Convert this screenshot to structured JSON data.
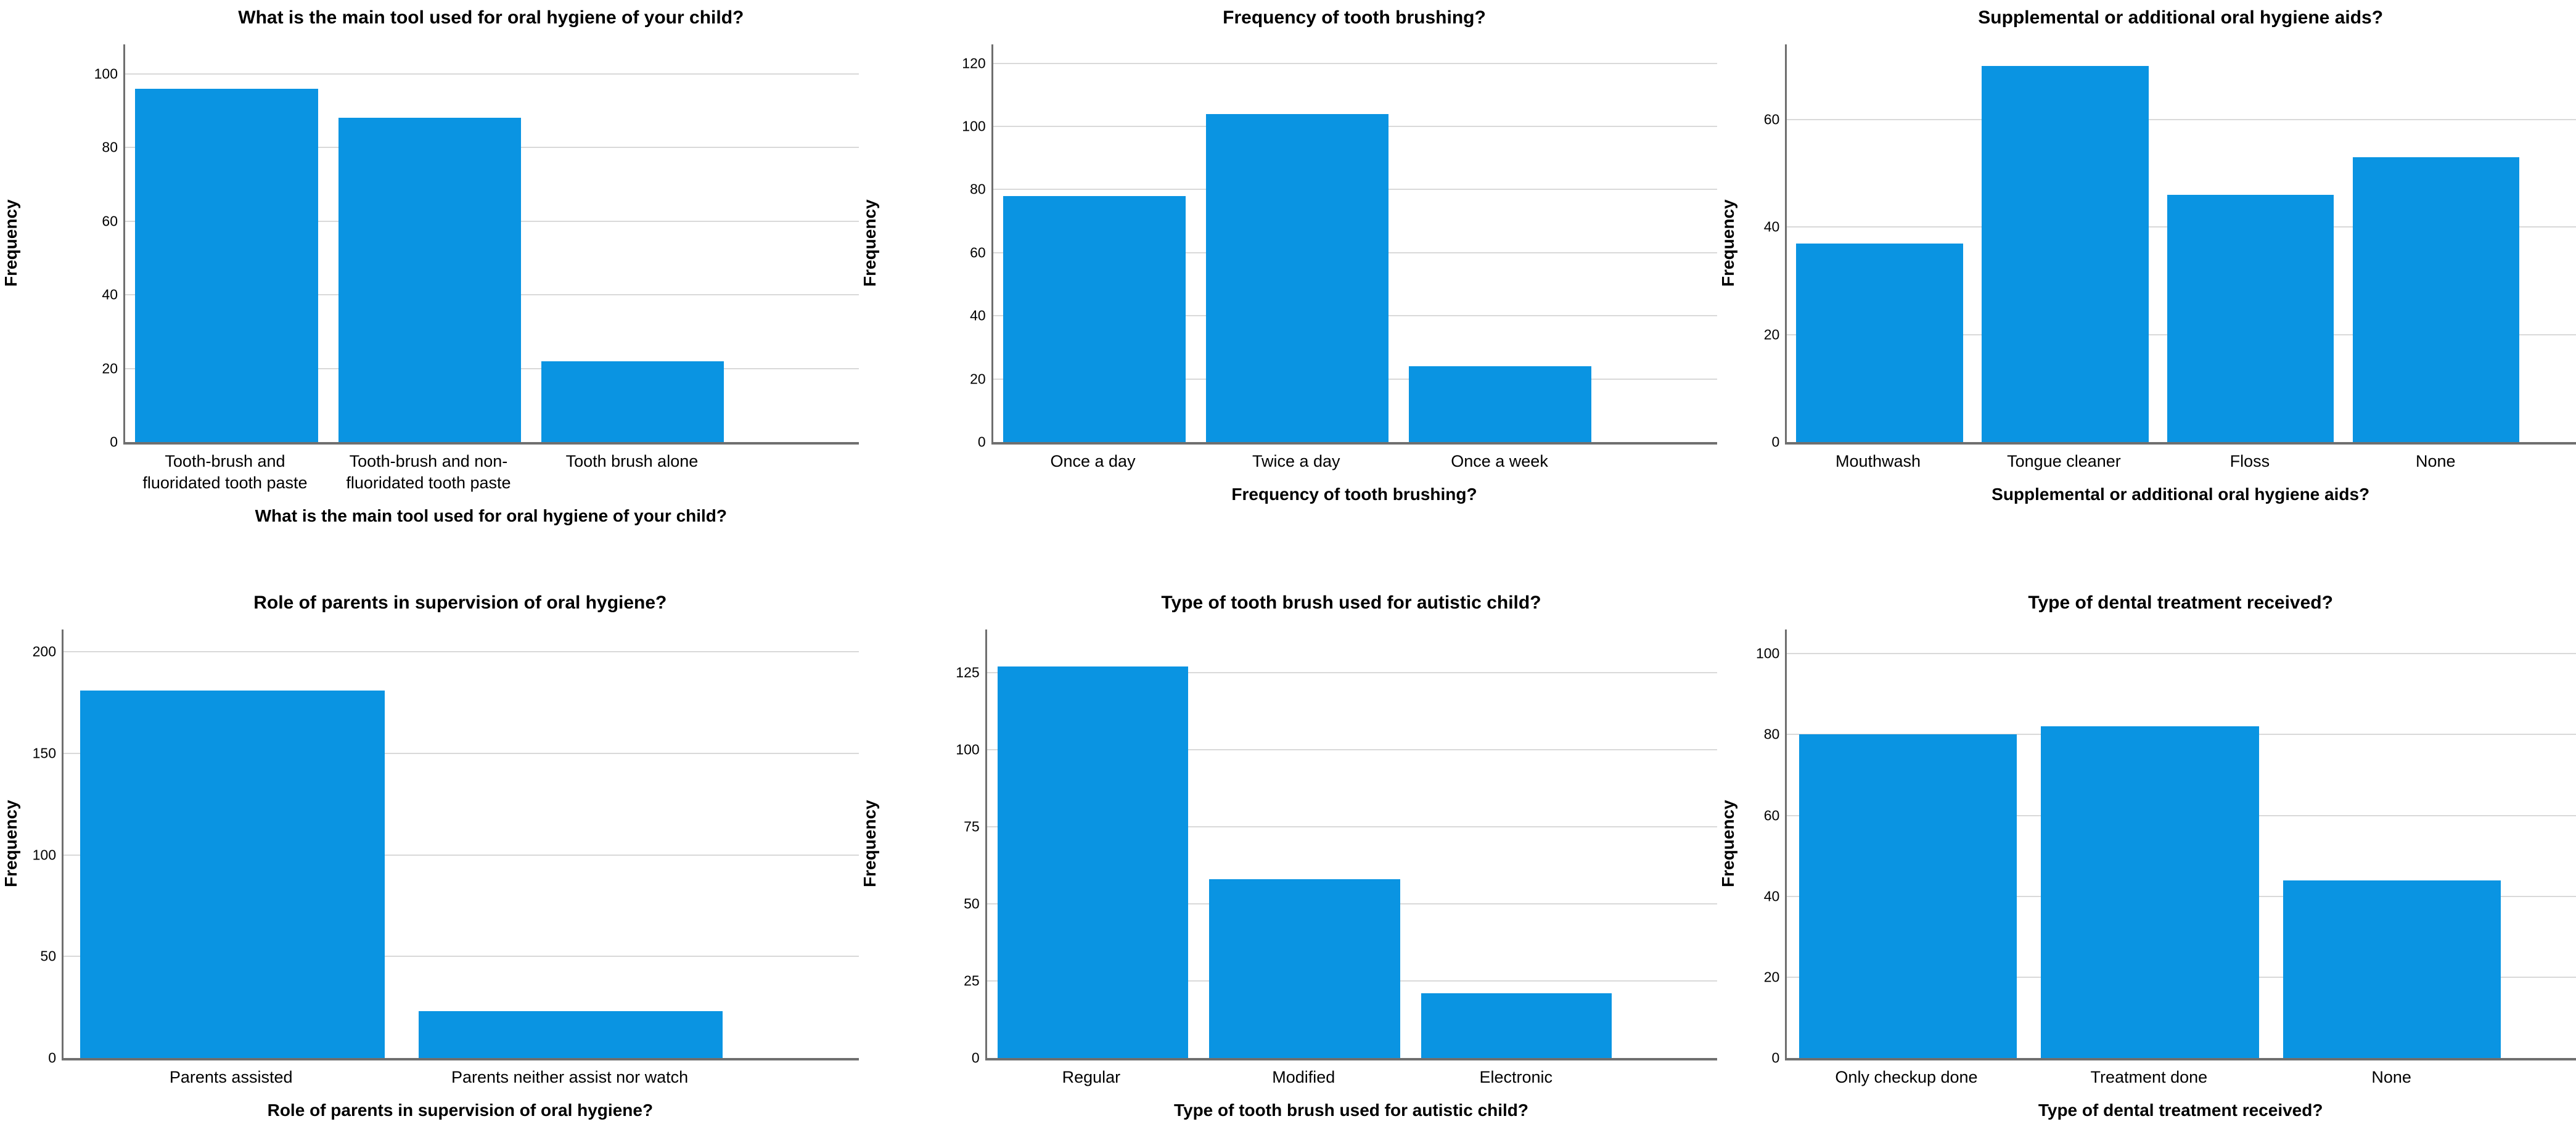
{
  "page": {
    "background": "#ffffff"
  },
  "colors": {
    "bar": "#0a94e2",
    "grid_line": "#d9d9d9",
    "axis_line": "#6f6f6f",
    "text": "#000000"
  },
  "chart_data": [
    {
      "type": "bar",
      "title": "What is the main tool used for oral hygiene of your child?",
      "xlabel": "What is the main tool used for oral hygiene of your child?",
      "ylabel": "Frequency",
      "categories": [
        "Tooth-brush and\nfluoridated tooth paste",
        "Tooth-brush and non-\nfluoridated tooth paste",
        "Tooth brush alone"
      ],
      "values": [
        96,
        88,
        22
      ],
      "yticks": [
        0,
        20,
        40,
        60,
        80,
        100
      ],
      "ylim": [
        0,
        108
      ],
      "grid": true,
      "legend": "none"
    },
    {
      "type": "bar",
      "title": "Frequency of tooth brushing?",
      "xlabel": "Frequency of tooth brushing?",
      "ylabel": "Frequency",
      "categories": [
        "Once a day",
        "Twice a day",
        "Once a week"
      ],
      "values": [
        78,
        104,
        24
      ],
      "yticks": [
        0,
        20,
        40,
        60,
        80,
        100,
        120
      ],
      "ylim": [
        0,
        126
      ],
      "grid": true,
      "legend": "none"
    },
    {
      "type": "bar",
      "title": "Supplemental or additional oral hygiene aids?",
      "xlabel": "Supplemental or additional oral hygiene aids?",
      "ylabel": "Frequency",
      "categories": [
        "Mouthwash",
        "Tongue cleaner",
        "Floss",
        "None"
      ],
      "values": [
        37,
        70,
        46,
        53
      ],
      "yticks": [
        0,
        20,
        40,
        60
      ],
      "ylim": [
        0,
        74
      ],
      "grid": true,
      "legend": "none"
    },
    {
      "type": "bar",
      "title": "Role of parents in supervision of oral hygiene?",
      "xlabel": "Role of parents in supervision of oral hygiene?",
      "ylabel": "Frequency",
      "categories": [
        "Parents assisted",
        "Parents neither assist nor watch"
      ],
      "values": [
        181,
        23
      ],
      "yticks": [
        0,
        50,
        100,
        150,
        200
      ],
      "ylim": [
        0,
        211
      ],
      "grid": true,
      "legend": "none"
    },
    {
      "type": "bar",
      "title": "Type of tooth brush used for autistic child?",
      "xlabel": "Type of tooth brush used for autistic child?",
      "ylabel": "Frequency",
      "categories": [
        "Regular",
        "Modified",
        "Electronic"
      ],
      "values": [
        127,
        58,
        21
      ],
      "yticks": [
        0,
        25,
        50,
        75,
        100,
        125
      ],
      "ylim": [
        0,
        139
      ],
      "grid": true,
      "legend": "none"
    },
    {
      "type": "bar",
      "title": "Type of dental treatment received?",
      "xlabel": "Type of dental treatment received?",
      "ylabel": "Frequency",
      "categories": [
        "Only checkup done",
        "Treatment done",
        "None"
      ],
      "values": [
        80,
        82,
        44
      ],
      "yticks": [
        0,
        20,
        40,
        60,
        80,
        100
      ],
      "ylim": [
        0,
        106
      ],
      "grid": true,
      "legend": "none"
    }
  ]
}
